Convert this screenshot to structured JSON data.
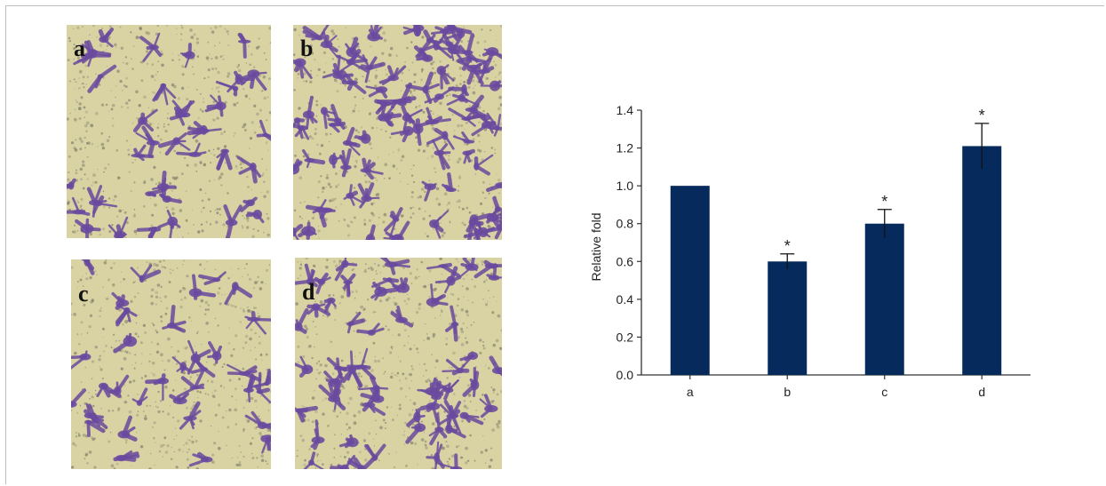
{
  "micrographs": {
    "colors": {
      "background": "#d9d3a4",
      "stain": "#6a4a9e",
      "dots": "#7a7a66"
    },
    "panels": [
      {
        "label": "a",
        "density": 0.35
      },
      {
        "label": "b",
        "density": 1.0
      },
      {
        "label": "c",
        "density": 0.3
      },
      {
        "label": "d",
        "density": 0.6
      }
    ]
  },
  "chart_data": {
    "type": "bar",
    "categories": [
      "a",
      "b",
      "c",
      "d"
    ],
    "values": [
      1.0,
      0.6,
      0.8,
      1.21
    ],
    "errors": [
      0,
      0.04,
      0.075,
      0.12
    ],
    "significance": [
      "",
      "*",
      "*",
      "*"
    ],
    "title": "",
    "xlabel": "",
    "ylabel": "Relative fold",
    "ylim": [
      0,
      1.4
    ],
    "yticks": [
      "0.0",
      "0.2",
      "0.4",
      "0.6",
      "0.8",
      "1.0",
      "1.2",
      "1.4"
    ],
    "bar_color": "#062a5c",
    "grid": false
  }
}
